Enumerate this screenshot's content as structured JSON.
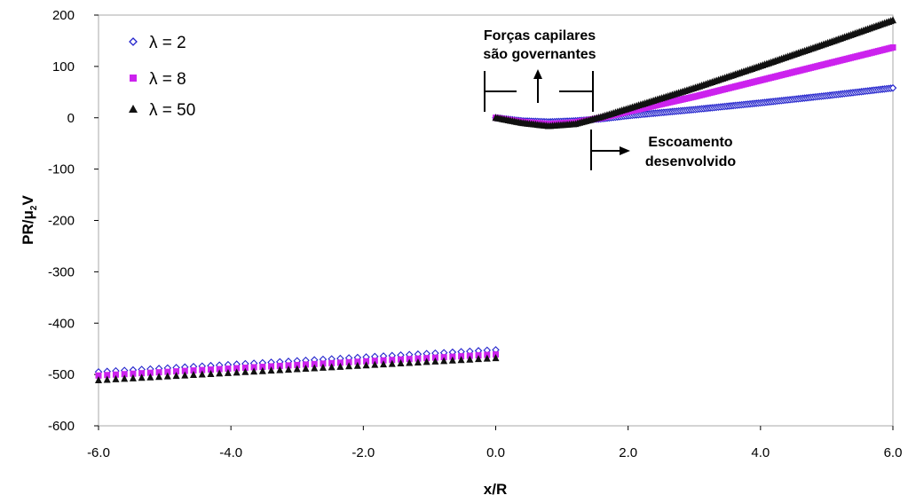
{
  "chart_data": {
    "type": "scatter",
    "title": "",
    "xlabel": "x/R",
    "ylabel": {
      "main": "PR/",
      "mu": "μ",
      "sub": "2",
      "end": "V"
    },
    "xlim": [
      -6.0,
      6.0
    ],
    "ylim": [
      -600,
      200
    ],
    "x_ticks": [
      "-6.0",
      "-4.0",
      "-2.0",
      "0.0",
      "2.0",
      "4.0",
      "6.0"
    ],
    "y_ticks": [
      "200",
      "100",
      "0",
      "-100",
      "-200",
      "-300",
      "-400",
      "-500",
      "-600"
    ],
    "grid": false,
    "legend_position": "top-left",
    "series": [
      {
        "name": "λ = 2",
        "marker": "open-diamond",
        "color": "#2222cc",
        "segments": [
          {
            "x_range": [
              -6.0,
              0.0
            ],
            "points": 47,
            "y_start": -495,
            "y_end": -452
          },
          {
            "x_range": [
              0.0,
              6.0
            ],
            "points": 190,
            "anchors": [
              [
                0.0,
                0
              ],
              [
                0.4,
                -6
              ],
              [
                0.8,
                -8
              ],
              [
                1.2,
                -6
              ],
              [
                1.6,
                -2
              ],
              [
                2.0,
                4
              ],
              [
                3.0,
                16
              ],
              [
                4.0,
                29
              ],
              [
                5.0,
                43
              ],
              [
                6.0,
                58
              ]
            ]
          }
        ]
      },
      {
        "name": "λ = 8",
        "marker": "filled-square",
        "color": "#cc22ee",
        "segments": [
          {
            "x_range": [
              -6.0,
              0.0
            ],
            "points": 47,
            "y_start": -502,
            "y_end": -461
          },
          {
            "x_range": [
              0.0,
              6.0
            ],
            "points": 190,
            "anchors": [
              [
                0.0,
                0
              ],
              [
                0.4,
                -8
              ],
              [
                0.8,
                -12
              ],
              [
                1.2,
                -9
              ],
              [
                1.6,
                0
              ],
              [
                2.0,
                12
              ],
              [
                3.0,
                41
              ],
              [
                4.0,
                73
              ],
              [
                5.0,
                105
              ],
              [
                6.0,
                137
              ]
            ]
          }
        ]
      },
      {
        "name": "λ = 50",
        "marker": "filled-triangle",
        "color": "#111111",
        "segments": [
          {
            "x_range": [
              -6.0,
              0.0
            ],
            "points": 47,
            "y_start": -511,
            "y_end": -468
          },
          {
            "x_range": [
              0.0,
              6.0
            ],
            "points": 190,
            "anchors": [
              [
                0.0,
                0
              ],
              [
                0.4,
                -10
              ],
              [
                0.8,
                -16
              ],
              [
                1.2,
                -12
              ],
              [
                1.6,
                2
              ],
              [
                2.0,
                18
              ],
              [
                3.0,
                58
              ],
              [
                4.0,
                101
              ],
              [
                5.0,
                145
              ],
              [
                6.0,
                190
              ]
            ]
          }
        ]
      }
    ],
    "annotations": {
      "capillary": [
        "Forças capilares",
        "são governantes"
      ],
      "developed": [
        "Escoamento",
        "desenvolvido"
      ]
    }
  }
}
